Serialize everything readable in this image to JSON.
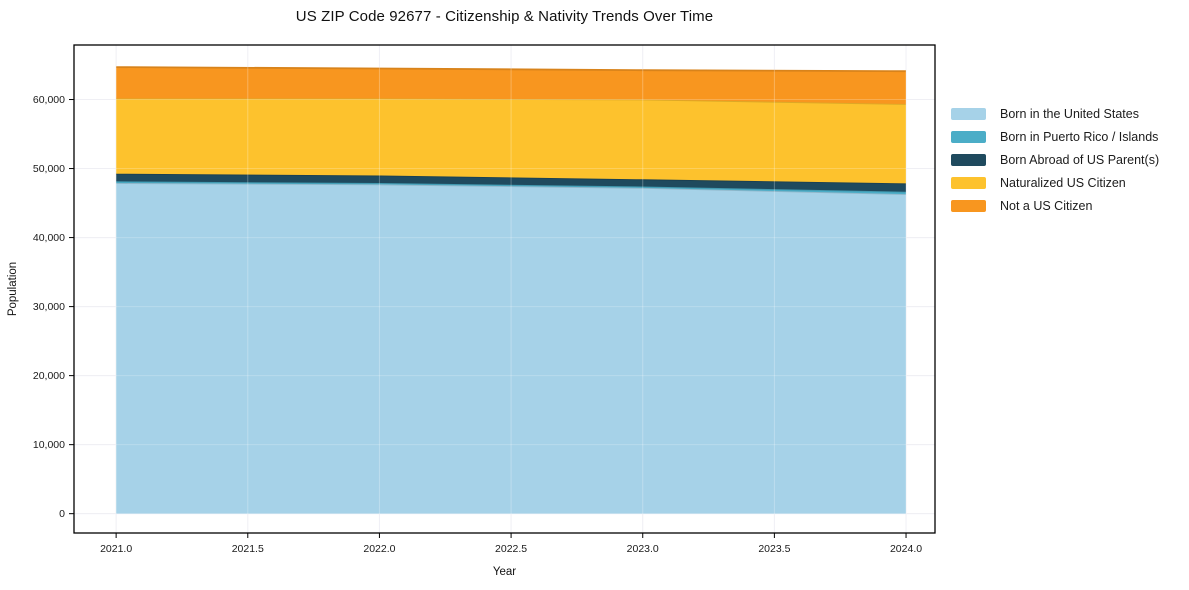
{
  "chart_data": {
    "type": "area",
    "stacked": true,
    "title": "US ZIP Code 92677 - Citizenship & Nativity Trends Over Time",
    "xlabel": "Year",
    "ylabel": "Population",
    "x": [
      2021,
      2022,
      2023,
      2024
    ],
    "series": [
      {
        "name": "Born in the United States",
        "color": "#a6d2e8",
        "values": [
          47900,
          47700,
          47200,
          46300
        ]
      },
      {
        "name": "Born in Puerto Rico / Islands",
        "color": "#4badc7",
        "values": [
          250,
          200,
          200,
          350
        ]
      },
      {
        "name": "Born Abroad of US Parent(s)",
        "color": "#1f4a5e",
        "values": [
          1100,
          1100,
          1050,
          1200
        ]
      },
      {
        "name": "Naturalized US Citizen",
        "color": "#fdc22d",
        "values": [
          10900,
          11150,
          11550,
          11500
        ]
      },
      {
        "name": "Not a US Citizen",
        "color": "#f8961f",
        "values": [
          4550,
          4350,
          4250,
          4750
        ]
      }
    ],
    "totals": [
      64700,
      64500,
      64250,
      64100
    ],
    "xticks": [
      2021.0,
      2021.5,
      2022.0,
      2022.5,
      2023.0,
      2023.5,
      2024.0
    ],
    "xtick_labels": [
      "2021.0",
      "2021.5",
      "2022.0",
      "2022.5",
      "2023.0",
      "2023.5",
      "2024.0"
    ],
    "yticks": [
      0,
      10000,
      20000,
      30000,
      40000,
      50000,
      60000
    ],
    "ytick_labels": [
      "0",
      "10,000",
      "20,000",
      "30,000",
      "40,000",
      "50,000",
      "60,000"
    ],
    "xlim": [
      2020.84,
      2024.11
    ],
    "ylim": [
      -2800,
      67900
    ],
    "grid": true,
    "grid_color": "#ebebf1",
    "frame_color": "#000000",
    "legend_position": "right",
    "legend_frame": false
  }
}
